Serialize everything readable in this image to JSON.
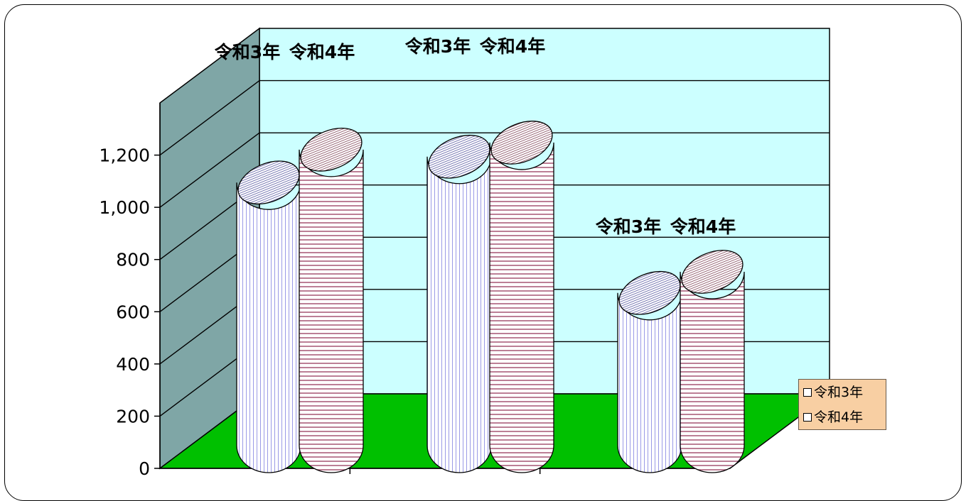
{
  "chart_data": {
    "type": "bar",
    "style": "3d-cylinder",
    "categories": [
      "",
      "",
      ""
    ],
    "series": [
      {
        "name": "令和3年",
        "values": [
          1120,
          1230,
          650
        ],
        "pattern": "vertical-lines",
        "color": "#9a9ae6"
      },
      {
        "name": "令和4年",
        "values": [
          1260,
          1290,
          740
        ],
        "pattern": "horizontal-lines",
        "color": "#a0486a"
      }
    ],
    "data_labels": [
      "令和3年",
      "令和4年"
    ],
    "yticks": [
      "0",
      "200",
      "400",
      "600",
      "800",
      "1,000",
      "1,200"
    ],
    "ylim": [
      0,
      1400
    ],
    "grid": true,
    "legend": "right",
    "colors": {
      "back_wall": "#ccffff",
      "side_wall": "#7fa6a6",
      "floor": "#00c000",
      "legend_bg": "#f8cfa3"
    }
  }
}
